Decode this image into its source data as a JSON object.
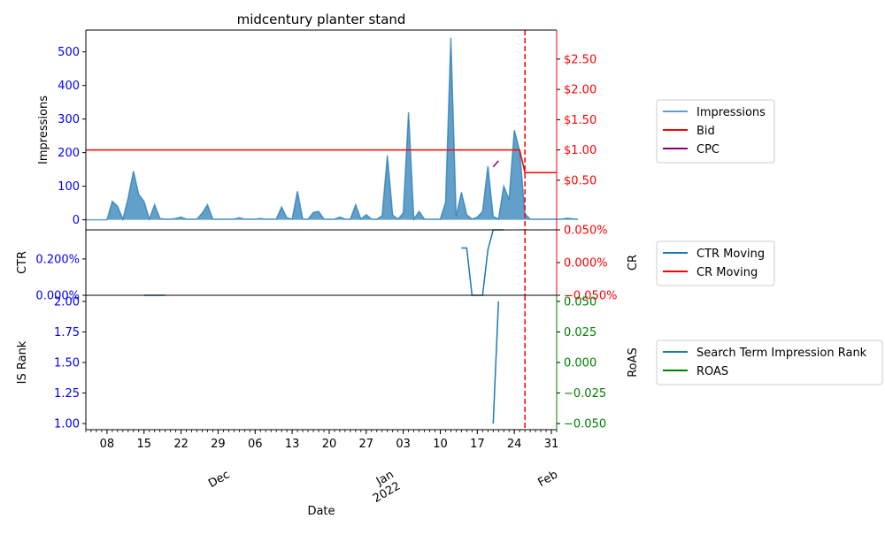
{
  "chart_data": {
    "type": "line",
    "title": "midcentury planter stand",
    "xlabel": "Date",
    "x_range": [
      "2021-11-04",
      "2022-02-01"
    ],
    "x_ticks": [
      {
        "date": "2021-11-08",
        "label": "08"
      },
      {
        "date": "2021-11-15",
        "label": "15"
      },
      {
        "date": "2021-11-22",
        "label": "22"
      },
      {
        "date": "2021-11-29",
        "label": "29"
      },
      {
        "date": "2021-12-06",
        "label": "06"
      },
      {
        "date": "2021-12-13",
        "label": "13"
      },
      {
        "date": "2021-12-20",
        "label": "20"
      },
      {
        "date": "2021-12-27",
        "label": "27"
      },
      {
        "date": "2022-01-03",
        "label": "03"
      },
      {
        "date": "2022-01-10",
        "label": "10"
      },
      {
        "date": "2022-01-17",
        "label": "17"
      },
      {
        "date": "2022-01-24",
        "label": "24"
      },
      {
        "date": "2022-01-31",
        "label": "31"
      }
    ],
    "x_major_ticks": [
      {
        "date": "2021-12-01",
        "label": "Dec",
        "sublabel": ""
      },
      {
        "date": "2022-01-01",
        "label": "Jan",
        "sublabel": "2022"
      },
      {
        "date": "2022-02-01",
        "label": "Feb",
        "sublabel": ""
      }
    ],
    "marker_date": "2022-01-26",
    "panels": [
      {
        "id": "top",
        "ylabel": "Impressions",
        "ylim": [
          -30,
          565
        ],
        "yticks": [
          0,
          100,
          200,
          300,
          400,
          500
        ],
        "ytick_labels": [
          "0",
          "100",
          "200",
          "300",
          "400",
          "500"
        ],
        "y2label": "",
        "y2lim": [
          -0.32,
          2.98
        ],
        "y2ticks": [
          0.5,
          1.0,
          1.5,
          2.0,
          2.5
        ],
        "y2tick_labels": [
          "$0.50",
          "$1.00",
          "$1.50",
          "$2.00",
          "$2.50"
        ],
        "legend": [
          "Impressions",
          "Bid",
          "CPC"
        ]
      },
      {
        "id": "middle",
        "ylabel": "CTR",
        "ylim": [
          0.0,
          0.0036
        ],
        "yticks": [
          0.0,
          0.002
        ],
        "ytick_labels": [
          "0.000%",
          "0.200%"
        ],
        "y2label": "CR",
        "y2lim": [
          -0.0005,
          0.0005
        ],
        "y2ticks": [
          -0.0005,
          0.0,
          0.0005
        ],
        "y2tick_labels": [
          "−0.050%",
          "0.000%",
          "0.050%"
        ],
        "legend": [
          "CTR Moving",
          "CR Moving"
        ]
      },
      {
        "id": "bottom",
        "ylabel": "IS Rank",
        "ylim": [
          0.95,
          2.05
        ],
        "yticks": [
          1.0,
          1.25,
          1.5,
          1.75,
          2.0
        ],
        "ytick_labels": [
          "1.00",
          "1.25",
          "1.50",
          "1.75",
          "2.00"
        ],
        "y2label": "RoAS",
        "y2lim": [
          -0.055,
          0.055
        ],
        "y2ticks": [
          -0.05,
          -0.025,
          0.0,
          0.025,
          0.05
        ],
        "y2tick_labels": [
          "−0.050",
          "−0.025",
          "0.000",
          "0.025",
          "0.050"
        ],
        "legend": [
          "Search Term Impression Rank",
          "ROAS"
        ]
      }
    ],
    "series": [
      {
        "name": "Impressions",
        "panel": "top",
        "axis": "left",
        "kind": "area",
        "color": "#1f77b4",
        "start": "2021-11-04",
        "values": [
          0,
          0,
          0,
          0,
          0,
          55,
          40,
          2,
          65,
          145,
          75,
          55,
          2,
          45,
          4,
          2,
          2,
          4,
          8,
          2,
          2,
          2,
          20,
          45,
          2,
          2,
          2,
          2,
          2,
          6,
          2,
          2,
          2,
          4,
          2,
          2,
          2,
          38,
          6,
          2,
          85,
          2,
          2,
          22,
          25,
          2,
          2,
          2,
          8,
          2,
          2,
          45,
          2,
          15,
          2,
          2,
          12,
          192,
          14,
          2,
          20,
          320,
          2,
          25,
          2,
          2,
          2,
          2,
          52,
          542,
          10,
          82,
          15,
          2,
          8,
          25,
          160,
          10,
          2,
          100,
          60,
          267,
          205,
          18,
          2,
          2,
          2,
          2,
          2,
          2,
          2,
          5,
          3,
          2
        ]
      },
      {
        "name": "Bid",
        "panel": "top",
        "axis": "right",
        "kind": "line",
        "color": "#ff0000",
        "points": [
          [
            "2021-11-04",
            1.0
          ],
          [
            "2022-01-25",
            1.0
          ],
          [
            "2022-01-26",
            0.625
          ],
          [
            "2022-02-01",
            0.625
          ]
        ]
      },
      {
        "name": "CPC",
        "panel": "top",
        "axis": "right",
        "kind": "line",
        "color": "#800080",
        "points": [
          [
            "2022-01-20",
            0.72
          ],
          [
            "2022-01-21",
            0.82
          ]
        ]
      },
      {
        "name": "CTR Moving",
        "panel": "middle",
        "axis": "left",
        "kind": "line",
        "color": "#1f77b4",
        "segments": [
          [
            [
              "2021-11-15",
              0.0
            ],
            [
              "2021-11-19",
              0.0
            ]
          ],
          [
            [
              "2022-01-14",
              0.0026
            ],
            [
              "2022-01-15",
              0.0026
            ],
            [
              "2022-01-16",
              0.0
            ],
            [
              "2022-01-18",
              0.0
            ],
            [
              "2022-01-19",
              0.0025
            ],
            [
              "2022-01-20",
              0.0036
            ],
            [
              "2022-01-22",
              0.0036
            ]
          ]
        ]
      },
      {
        "name": "CR Moving",
        "panel": "middle",
        "axis": "right",
        "kind": "line",
        "color": "#ff0000",
        "segments": []
      },
      {
        "name": "Search Term Impression Rank",
        "panel": "bottom",
        "axis": "left",
        "kind": "line",
        "color": "#1f77b4",
        "points": [
          [
            "2022-01-20",
            1.0
          ],
          [
            "2022-01-21",
            2.0
          ]
        ]
      },
      {
        "name": "ROAS",
        "panel": "bottom",
        "axis": "right",
        "kind": "line",
        "color": "#008000",
        "points": []
      }
    ]
  }
}
